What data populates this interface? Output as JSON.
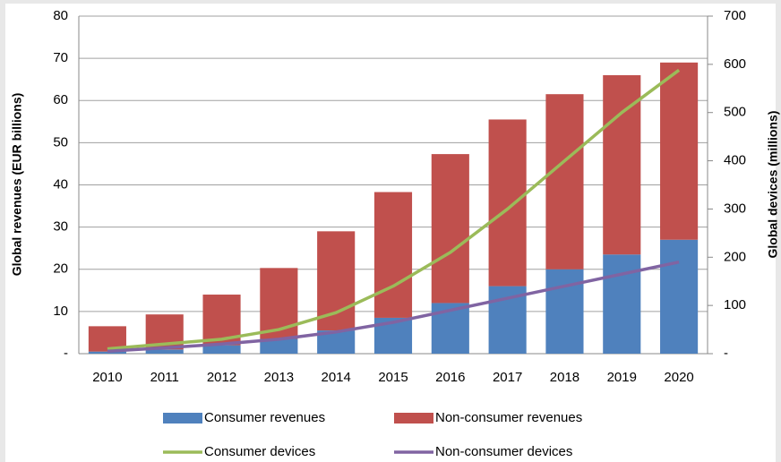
{
  "chart_data": {
    "type": "bar",
    "ylabel": "Global revenues (EUR billions)",
    "y2label": "Global devices (millions)",
    "categories": [
      "2010",
      "2011",
      "2012",
      "2013",
      "2014",
      "2015",
      "2016",
      "2017",
      "2018",
      "2019",
      "2020"
    ],
    "series": [
      {
        "name": "Consumer revenues",
        "type": "bar",
        "color": "#4f81bd",
        "values": [
          0.5,
          1,
          2,
          3.5,
          5.5,
          8.5,
          12,
          16,
          20,
          23.5,
          27
        ]
      },
      {
        "name": "Non-consumer revenues",
        "type": "bar",
        "color": "#c0504d",
        "values": [
          6,
          8.3,
          12,
          16.8,
          23.5,
          29.8,
          35.3,
          39.5,
          41.5,
          42.5,
          42
        ]
      },
      {
        "name": "Consumer devices",
        "type": "line",
        "axis": "y2",
        "color": "#9bbb59",
        "values": [
          10,
          20,
          30,
          50,
          85,
          140,
          210,
          300,
          400,
          500,
          588
        ]
      },
      {
        "name": "Non-consumer devices",
        "type": "line",
        "axis": "y2",
        "color": "#8064a2",
        "values": [
          5,
          12,
          20,
          30,
          45,
          65,
          90,
          115,
          140,
          165,
          190
        ]
      }
    ],
    "stacked": true,
    "ylim": [
      0,
      80
    ],
    "yticks": [
      {
        "value": 0,
        "label": "-"
      },
      10,
      20,
      30,
      40,
      50,
      60,
      70,
      80
    ],
    "y2lim": [
      0,
      700
    ],
    "y2ticks": [
      {
        "value": 0,
        "label": "-"
      },
      100,
      200,
      300,
      400,
      500,
      600,
      700
    ],
    "grid": true
  }
}
